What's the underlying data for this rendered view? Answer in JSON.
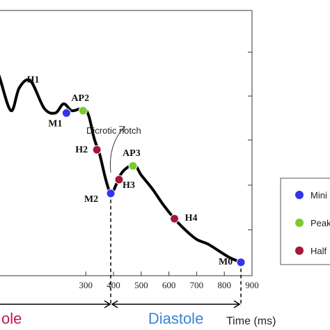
{
  "chart_data": {
    "type": "line",
    "xlabel": "Time (ms)",
    "xlim": [
      -60,
      900
    ],
    "ylim": [
      0,
      1
    ],
    "x_ticks": [
      300,
      400,
      500,
      600,
      700,
      800,
      900
    ],
    "curve": {
      "x": [
        -40,
        -10,
        30,
        60,
        100,
        150,
        190,
        220,
        250,
        290,
        310,
        330,
        350,
        370,
        385,
        395,
        410,
        430,
        460,
        480,
        500,
        540,
        580,
        620,
        660,
        700,
        740,
        780,
        820,
        860
      ],
      "y": [
        0.95,
        0.84,
        0.7,
        0.8,
        0.83,
        0.71,
        0.69,
        0.73,
        0.7,
        0.71,
        0.68,
        0.58,
        0.51,
        0.41,
        0.35,
        0.34,
        0.38,
        0.43,
        0.46,
        0.46,
        0.42,
        0.36,
        0.29,
        0.23,
        0.18,
        0.14,
        0.12,
        0.09,
        0.06,
        0.04
      ]
    },
    "points": [
      {
        "label": "H1",
        "x": 130,
        "y": 0.78,
        "type": "half",
        "marker": false
      },
      {
        "label": "M1",
        "x": 230,
        "y": 0.69,
        "type": "minimum"
      },
      {
        "label": "AP2",
        "x": 290,
        "y": 0.7,
        "type": "peak"
      },
      {
        "label": "H2",
        "x": 340,
        "y": 0.53,
        "type": "half"
      },
      {
        "label": "M2",
        "x": 390,
        "y": 0.34,
        "type": "minimum"
      },
      {
        "label": "H3",
        "x": 420,
        "y": 0.4,
        "type": "half"
      },
      {
        "label": "AP3",
        "x": 470,
        "y": 0.46,
        "type": "peak"
      },
      {
        "label": "H4",
        "x": 620,
        "y": 0.23,
        "type": "half"
      },
      {
        "label": "M0",
        "x": 860,
        "y": 0.04,
        "type": "minimum"
      }
    ],
    "annotation": {
      "text": "Dicrotic notch",
      "x": 395
    },
    "phases": [
      {
        "text": "ole",
        "color": "#c0184f"
      },
      {
        "text": "Diastole",
        "color": "#3b82d6"
      }
    ],
    "dividers_x": [
      390,
      860
    ],
    "legend": [
      {
        "text": "Mini",
        "type": "minimum"
      },
      {
        "text": "Peak",
        "type": "peak"
      },
      {
        "text": "Half",
        "type": "half"
      }
    ],
    "colors": {
      "minimum": "#3333ee",
      "peak": "#7ec832",
      "half": "#a3173a",
      "curve": "#000000",
      "phase_systole": "#c0184f",
      "phase_diastole": "#3b82d6"
    }
  }
}
